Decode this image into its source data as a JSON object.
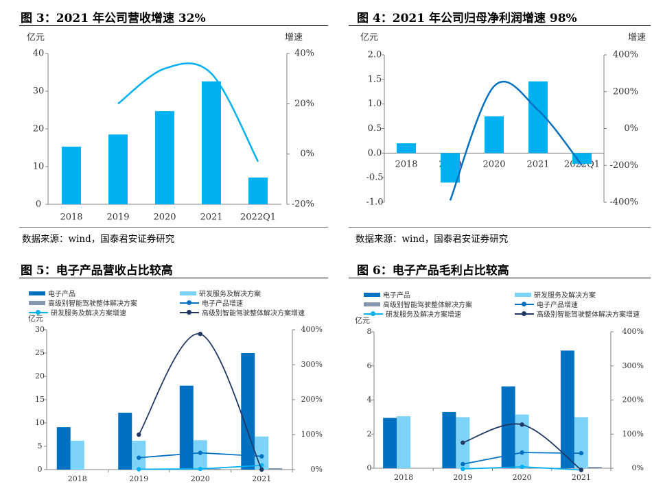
{
  "figures": [
    {
      "title": "图 3：2021 年公司营收增速 32%",
      "source": "数据来源：wind，国泰君安证券研究"
    },
    {
      "title": "图 4：2021 年公司归母净利润增速 98%",
      "source": "数据来源：wind，国泰君安证券研究"
    },
    {
      "title": "图 5：电子产品营收占比较高"
    },
    {
      "title": "图 6：电子产品毛利占比较高"
    }
  ],
  "colors": {
    "bar_light": "#00B0F0",
    "dark_blue": "#0070C0",
    "light_blue": "#7DD3F7",
    "gray_blue": "#8497B0",
    "navy": "#1F3864",
    "cyan": "#00B0F0",
    "axis": "#808080"
  },
  "chart_data": [
    {
      "type": "bar",
      "categories": [
        "2018",
        "2019",
        "2020",
        "2021",
        "2022Q1"
      ],
      "ylabel": "亿元",
      "y2label": "增速",
      "ylim": [
        0,
        40
      ],
      "yticks": [
        "0",
        "10",
        "20",
        "30",
        "40"
      ],
      "y2lim": [
        -20,
        40
      ],
      "y2ticks": [
        "-20%",
        "0%",
        "20%",
        "40%"
      ],
      "series": [
        {
          "type": "bar",
          "axis": "left",
          "values": [
            15.3,
            18.5,
            24.7,
            32.6,
            7.1
          ]
        },
        {
          "type": "line",
          "axis": "right",
          "smooth": true,
          "markers": false,
          "values": [
            null,
            20,
            34,
            32,
            -3
          ]
        }
      ]
    },
    {
      "type": "bar",
      "categories": [
        "2018",
        "2019",
        "2020",
        "2021",
        "2022Q1"
      ],
      "ylabel": "亿元",
      "y2label": "增速",
      "ylim": [
        -1,
        2
      ],
      "yticks": [
        "-1.0",
        "-0.5",
        "0.0",
        "0.5",
        "1.0",
        "1.5",
        "2.0"
      ],
      "y2lim": [
        -400,
        400
      ],
      "y2ticks": [
        "-400%",
        "-200%",
        "0%",
        "200%",
        "400%"
      ],
      "series": [
        {
          "type": "bar",
          "axis": "left",
          "values": [
            0.2,
            -0.6,
            0.75,
            1.46,
            -0.22
          ]
        },
        {
          "type": "line",
          "axis": "right",
          "smooth": true,
          "markers": false,
          "values": [
            null,
            -390,
            230,
            100,
            -200
          ]
        }
      ]
    },
    {
      "type": "bar",
      "categories": [
        "2018",
        "2019",
        "2020",
        "2021"
      ],
      "ylabel": "亿元",
      "ylim": [
        0,
        30
      ],
      "yticks": [
        "0",
        "5",
        "10",
        "15",
        "20",
        "25",
        "30"
      ],
      "y2lim": [
        0,
        400
      ],
      "y2ticks": [
        "0%",
        "100%",
        "200%",
        "300%",
        "400%"
      ],
      "legend": [
        "电子产品",
        "研发服务及解决方案",
        "高级别智能驾驶整体解决方案",
        "电子产品增速",
        "研发服务及解决方案增速",
        "高级别智能驾驶整体解决方案增速"
      ],
      "series": [
        {
          "name": "电子产品",
          "type": "bar",
          "axis": "left",
          "values": [
            9.1,
            12.2,
            18,
            25
          ]
        },
        {
          "name": "研发服务及解决方案",
          "type": "bar",
          "axis": "left",
          "values": [
            6.2,
            6.2,
            6.3,
            7.1
          ]
        },
        {
          "name": "高级别智能驾驶整体解决方案",
          "type": "bar",
          "axis": "left",
          "values": [
            0,
            0.1,
            0.2,
            0.3
          ]
        },
        {
          "name": "电子产品增速",
          "type": "line",
          "axis": "right",
          "markers": true,
          "values": [
            null,
            34,
            48,
            38
          ]
        },
        {
          "name": "研发服务及解决方案增速",
          "type": "line",
          "axis": "right",
          "markers": true,
          "values": [
            null,
            1,
            2,
            12
          ]
        },
        {
          "name": "高级别智能驾驶整体解决方案增速",
          "type": "line",
          "axis": "right",
          "smooth": true,
          "markers": true,
          "values": [
            null,
            100,
            388,
            0
          ]
        }
      ]
    },
    {
      "type": "bar",
      "categories": [
        "2018",
        "2019",
        "2020",
        "2021"
      ],
      "ylabel": "亿元",
      "ylim": [
        0,
        8
      ],
      "yticks": [
        "0",
        "2",
        "4",
        "6",
        "8"
      ],
      "y2lim": [
        0,
        400
      ],
      "y2ticks": [
        "0%",
        "100%",
        "200%",
        "300%",
        "400%"
      ],
      "legend": [
        "电子产品",
        "研发服务及解决方案",
        "高级别智能驾驶整体解决方案",
        "电子产品增速",
        "研发服务及解决方案增速",
        "高级别智能驾驶整体解决方案增速"
      ],
      "series": [
        {
          "name": "电子产品",
          "type": "bar",
          "axis": "left",
          "values": [
            2.95,
            3.3,
            4.8,
            6.9
          ]
        },
        {
          "name": "研发服务及解决方案",
          "type": "bar",
          "axis": "left",
          "values": [
            3.05,
            3.0,
            3.15,
            3.0
          ]
        },
        {
          "name": "高级别智能驾驶整体解决方案",
          "type": "bar",
          "axis": "left",
          "values": [
            0,
            0.02,
            0.05,
            0.08
          ]
        },
        {
          "name": "电子产品增速",
          "type": "line",
          "axis": "right",
          "markers": true,
          "values": [
            null,
            12,
            46,
            44
          ]
        },
        {
          "name": "研发服务及解决方案增速",
          "type": "line",
          "axis": "right",
          "markers": true,
          "values": [
            null,
            -2,
            4,
            -5
          ]
        },
        {
          "name": "高级别智能驾驶整体解决方案增速",
          "type": "line",
          "axis": "right",
          "smooth": true,
          "markers": true,
          "values": [
            null,
            75,
            128,
            -5
          ]
        }
      ]
    }
  ]
}
